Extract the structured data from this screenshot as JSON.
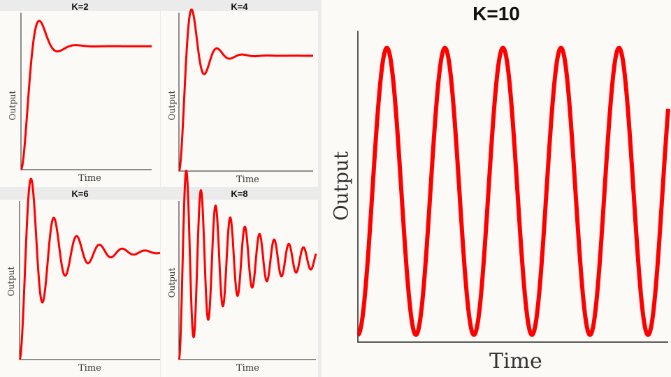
{
  "chart_data": [
    {
      "type": "line",
      "title": "K=2",
      "xlabel": "Time",
      "ylabel": "Output",
      "color": "#ff0000",
      "response": {
        "zeta": 0.45,
        "wn": 4.2,
        "tmax": 6.0
      },
      "ylim": [
        0,
        1.25
      ]
    },
    {
      "type": "line",
      "title": "K=4",
      "xlabel": "Time",
      "ylabel": "Output",
      "color": "#ff0000",
      "response": {
        "zeta": 0.28,
        "wn": 5.8,
        "tmax": 6.0
      },
      "ylim": [
        0,
        1.35
      ]
    },
    {
      "type": "line",
      "title": "K=6",
      "xlabel": "Time",
      "ylabel": "Output",
      "color": "#ff0000",
      "response": {
        "zeta": 0.12,
        "wn": 6.5,
        "tmax": 6.0
      },
      "ylim": [
        0,
        1.45
      ]
    },
    {
      "type": "line",
      "title": "K=8",
      "xlabel": "Time",
      "ylabel": "Output",
      "color": "#ff0000",
      "response": {
        "zeta": 0.04,
        "wn": 9.8,
        "tmax": 6.0
      },
      "ylim": [
        0,
        1.55
      ]
    },
    {
      "type": "line",
      "title": "K=10",
      "xlabel": "Time",
      "ylabel": "Output",
      "color": "#ff0000",
      "response": {
        "zeta": 0.0,
        "wn": 10.5,
        "tmax": 3.2
      },
      "ylim": [
        -0.05,
        2.1
      ]
    }
  ]
}
